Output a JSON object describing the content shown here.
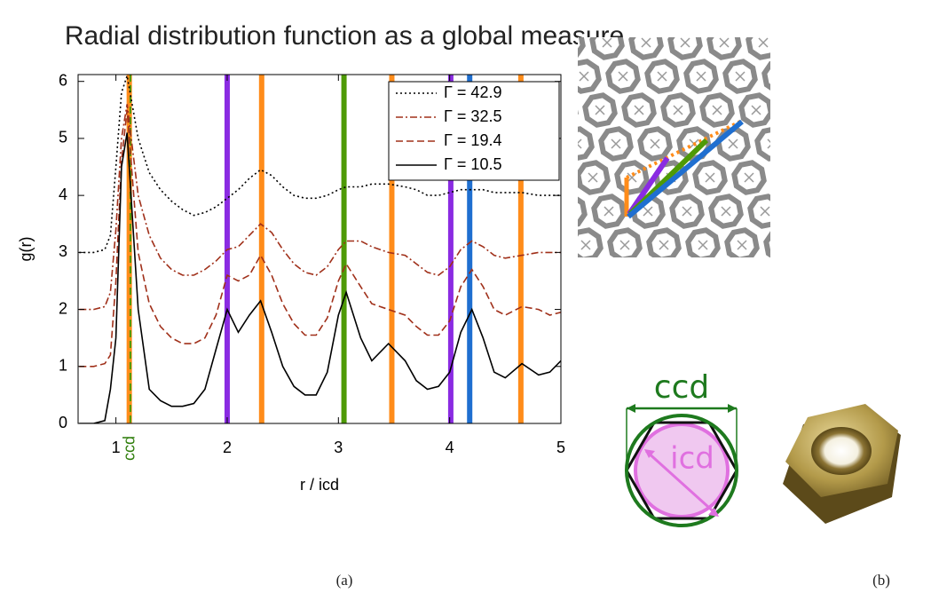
{
  "header": {
    "title": "Radial distribution function as a global measure"
  },
  "chart_data": {
    "type": "line",
    "xlabel": "r / icd",
    "ylabel": "g(r)",
    "xlim": [
      0.66,
      5
    ],
    "ylim": [
      0,
      6.12
    ],
    "xticks": [
      1,
      2,
      3,
      4,
      5
    ],
    "yticks": [
      0,
      1,
      2,
      3,
      4,
      5,
      6
    ],
    "legend": "upper right",
    "x": [
      0.67,
      0.8,
      0.9,
      0.95,
      1.0,
      1.05,
      1.1,
      1.2,
      1.3,
      1.4,
      1.5,
      1.6,
      1.7,
      1.8,
      1.9,
      2.0,
      2.1,
      2.2,
      2.3,
      2.4,
      2.5,
      2.6,
      2.7,
      2.8,
      2.9,
      3.0,
      3.07,
      3.2,
      3.3,
      3.45,
      3.6,
      3.7,
      3.8,
      3.9,
      4.0,
      4.1,
      4.2,
      4.3,
      4.4,
      4.5,
      4.65,
      4.8,
      4.9,
      5.0
    ],
    "series": [
      {
        "name": "Γ = 42.9",
        "color": "#000000",
        "style": "dotted",
        "values": [
          3,
          3,
          3.05,
          3.3,
          4.5,
          5.8,
          6.1,
          5.0,
          4.4,
          4.1,
          3.9,
          3.75,
          3.65,
          3.7,
          3.8,
          3.95,
          4.1,
          4.3,
          4.45,
          4.35,
          4.15,
          4.0,
          3.95,
          3.95,
          4.0,
          4.1,
          4.15,
          4.15,
          4.2,
          4.2,
          4.15,
          4.1,
          4.0,
          4.0,
          4.05,
          4.1,
          4.1,
          4.1,
          4.05,
          4.05,
          4.05,
          4.0,
          4.0,
          4.0
        ]
      },
      {
        "name": "Γ = 32.5",
        "color": "#a0301a",
        "style": "dashdot",
        "values": [
          2,
          2,
          2.05,
          2.3,
          3.4,
          5.0,
          5.6,
          4.0,
          3.3,
          2.9,
          2.7,
          2.6,
          2.6,
          2.7,
          2.85,
          3.05,
          3.1,
          3.3,
          3.5,
          3.35,
          3.05,
          2.8,
          2.65,
          2.6,
          2.75,
          3.05,
          3.2,
          3.2,
          3.1,
          3.0,
          2.95,
          2.8,
          2.65,
          2.6,
          2.75,
          3.05,
          3.2,
          3.1,
          2.95,
          2.9,
          2.95,
          3.0,
          3.0,
          3.0
        ]
      },
      {
        "name": "Γ = 19.4",
        "color": "#a0301a",
        "style": "dashed",
        "values": [
          1,
          1,
          1.05,
          1.2,
          2.5,
          4.6,
          5.5,
          3.0,
          2.1,
          1.7,
          1.5,
          1.4,
          1.4,
          1.5,
          1.9,
          2.6,
          2.5,
          2.6,
          2.95,
          2.6,
          2.1,
          1.75,
          1.55,
          1.55,
          1.85,
          2.5,
          2.8,
          2.4,
          2.1,
          2.0,
          1.9,
          1.7,
          1.55,
          1.55,
          1.8,
          2.4,
          2.7,
          2.4,
          2.0,
          1.9,
          2.05,
          2.0,
          1.9,
          1.95
        ]
      },
      {
        "name": "Γ = 10.5",
        "color": "#000000",
        "style": "solid",
        "values": [
          0,
          0,
          0.05,
          0.6,
          1.5,
          4.5,
          5.1,
          2.0,
          0.6,
          0.4,
          0.3,
          0.3,
          0.35,
          0.6,
          1.3,
          2.0,
          1.6,
          1.9,
          2.15,
          1.6,
          1.0,
          0.65,
          0.5,
          0.5,
          0.9,
          1.9,
          2.3,
          1.5,
          1.1,
          1.4,
          1.1,
          0.75,
          0.6,
          0.65,
          0.9,
          1.6,
          2.0,
          1.5,
          0.9,
          0.8,
          1.05,
          0.85,
          0.9,
          1.1
        ]
      }
    ],
    "reference_lines": [
      {
        "x": 1.12,
        "color": "#ff8c1a",
        "style": "solid"
      },
      {
        "x": 2.0,
        "color": "#8a2be2",
        "style": "solid"
      },
      {
        "x": 2.31,
        "color": "#ff8c1a",
        "style": "solid"
      },
      {
        "x": 3.05,
        "color": "#4e9a06",
        "style": "solid"
      },
      {
        "x": 3.48,
        "color": "#ff8c1a",
        "style": "solid"
      },
      {
        "x": 4.01,
        "color": "#8a2be2",
        "style": "solid"
      },
      {
        "x": 4.18,
        "color": "#1f6fd0",
        "style": "solid"
      },
      {
        "x": 4.64,
        "color": "#ff8c1a",
        "style": "solid"
      },
      {
        "x": 1.13,
        "color": "#4e9a06",
        "style": "dashed"
      }
    ],
    "annotations": [
      {
        "text": "ccd",
        "x": 1.13,
        "color": "#2e7d0a"
      }
    ]
  },
  "figure": {
    "ccd_label": "ccd",
    "icd_label": "icd"
  },
  "captions": [
    "(a)",
    "(b)"
  ]
}
